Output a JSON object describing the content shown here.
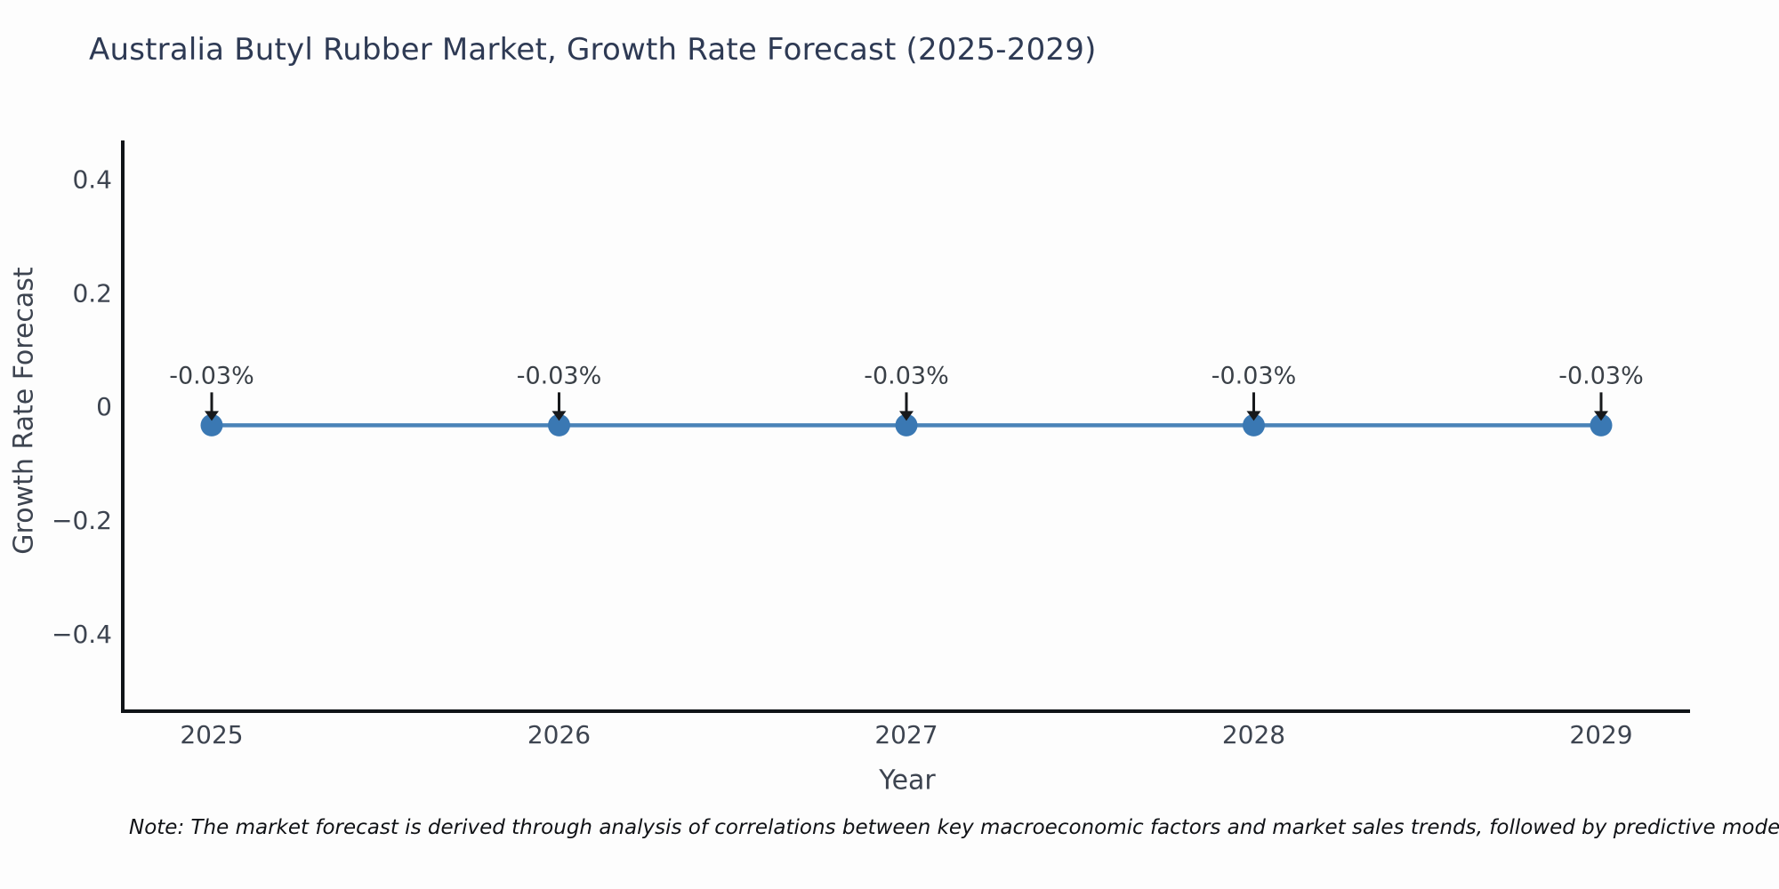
{
  "chart_data": {
    "type": "line",
    "title": "Australia Butyl Rubber Market, Growth Rate Forecast (2025-2029)",
    "xlabel": "Year",
    "ylabel": "Growth Rate Forecast",
    "x": [
      2025,
      2026,
      2027,
      2028,
      2029
    ],
    "series": [
      {
        "name": "Growth Rate Forecast",
        "values": [
          -0.03,
          -0.03,
          -0.03,
          -0.03,
          -0.03
        ]
      }
    ],
    "point_annotations": [
      "-0.03%",
      "-0.03%",
      "-0.03%",
      "-0.03%",
      "-0.03%"
    ],
    "xtick_labels": [
      "2025",
      "2026",
      "2027",
      "2028",
      "2029"
    ],
    "ytick_values": [
      0.4,
      0.2,
      0,
      -0.2,
      -0.4
    ],
    "ytick_labels": [
      "0.4",
      "0.2",
      "0",
      "−0.2",
      "−0.4"
    ],
    "ylim": [
      -0.533,
      0.471
    ],
    "grid": false,
    "legend": false,
    "colors": {
      "line": "#4a83b8",
      "marker": "#3a78b3",
      "axis": "#101418",
      "title_text": "#2e3a54",
      "tick_text": "#3d4450",
      "annotation_text": "#3a4047",
      "annotation_arrow": "#17191c"
    }
  },
  "note": {
    "text": "Note: The market forecast is derived through analysis of correlations between key macroeconomic factors and market sales trends, followed by predictive modeling to project future sal"
  }
}
